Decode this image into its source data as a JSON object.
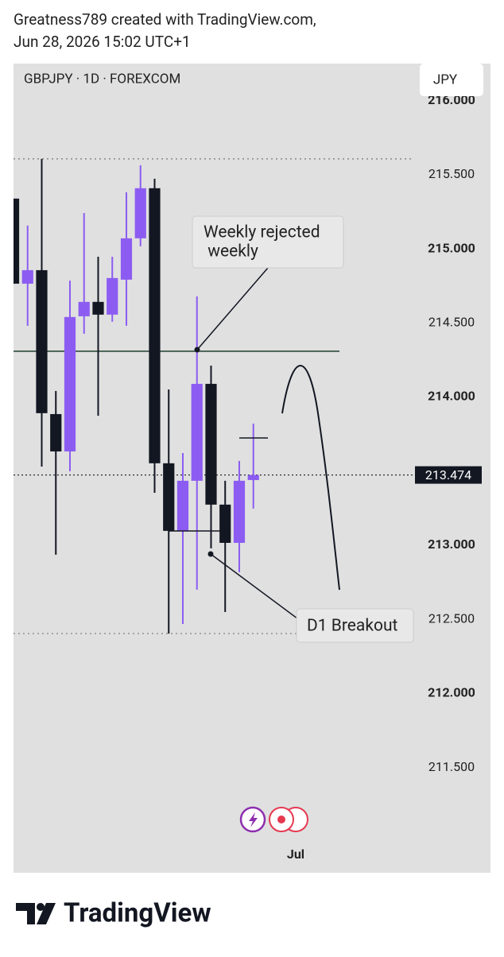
{
  "header": {
    "line1": "Greatness789 created with TradingView.com,",
    "line2": "Jun 28, 2026 15:02 UTC+1"
  },
  "chart_data": {
    "type": "candlestick",
    "title": "GBPJPY · 1D · FOREXCOM",
    "currency": "JPY",
    "x": [
      0,
      1,
      2,
      3,
      4,
      5,
      6,
      7,
      8,
      9,
      10,
      11,
      12,
      13,
      14,
      15,
      16,
      17
    ],
    "open": [
      215.339,
      214.765,
      214.856,
      213.885,
      213.633,
      214.545,
      214.642,
      214.556,
      214.792,
      215.071,
      215.409,
      213.553,
      213.097,
      213.435,
      214.089,
      213.274,
      213.016,
      213.44
    ],
    "high": [
      215.339,
      215.157,
      215.607,
      214.041,
      214.786,
      215.242,
      214.947,
      214.947,
      215.382,
      215.564,
      215.473,
      214.051,
      213.622,
      214.679,
      214.212,
      213.435,
      213.569,
      213.821
    ],
    "low": [
      214.765,
      214.481,
      213.531,
      212.936,
      213.499,
      214.427,
      213.874,
      214.508,
      214.481,
      215.017,
      213.354,
      212.404,
      212.469,
      212.7,
      212.979,
      212.549,
      212.818,
      213.247
    ],
    "close": [
      214.765,
      214.856,
      213.891,
      213.633,
      214.54,
      214.642,
      214.556,
      214.803,
      215.071,
      215.409,
      213.553,
      213.097,
      213.435,
      214.089,
      213.274,
      213.016,
      213.435,
      213.474
    ],
    "up_color": "#8c5cf2",
    "down_color": "#131722",
    "xlim": [
      0,
      28.34
    ],
    "xticks": [
      {
        "value": 20,
        "label": "Jul"
      }
    ],
    "ylim": [
      210.79,
      216.25
    ],
    "yticks": [
      {
        "value": 211.5,
        "label": "211.500"
      },
      {
        "value": 212,
        "label": "212.000"
      },
      {
        "value": 212.5,
        "label": "212.500"
      },
      {
        "value": 213,
        "label": "213.000"
      },
      {
        "value": 214,
        "label": "214.000"
      },
      {
        "value": 214.5,
        "label": "214.500"
      },
      {
        "value": 215,
        "label": "215.000"
      },
      {
        "value": 215.5,
        "label": "215.500"
      },
      {
        "value": 216,
        "label": "216.000"
      }
    ],
    "last_price": {
      "value": 213.474,
      "label": "213.474"
    },
    "dotted_levels": [
      215.607,
      212.404
    ],
    "horizontal_line": 214.309,
    "horizontal_line_color": "#1f3d2e",
    "annotations": [
      {
        "lines": [
          "Weekly rejected",
          " weekly"
        ]
      },
      {
        "lines": [
          "D1 Breakout"
        ]
      }
    ]
  },
  "footer": {
    "brand": "TradingView"
  }
}
